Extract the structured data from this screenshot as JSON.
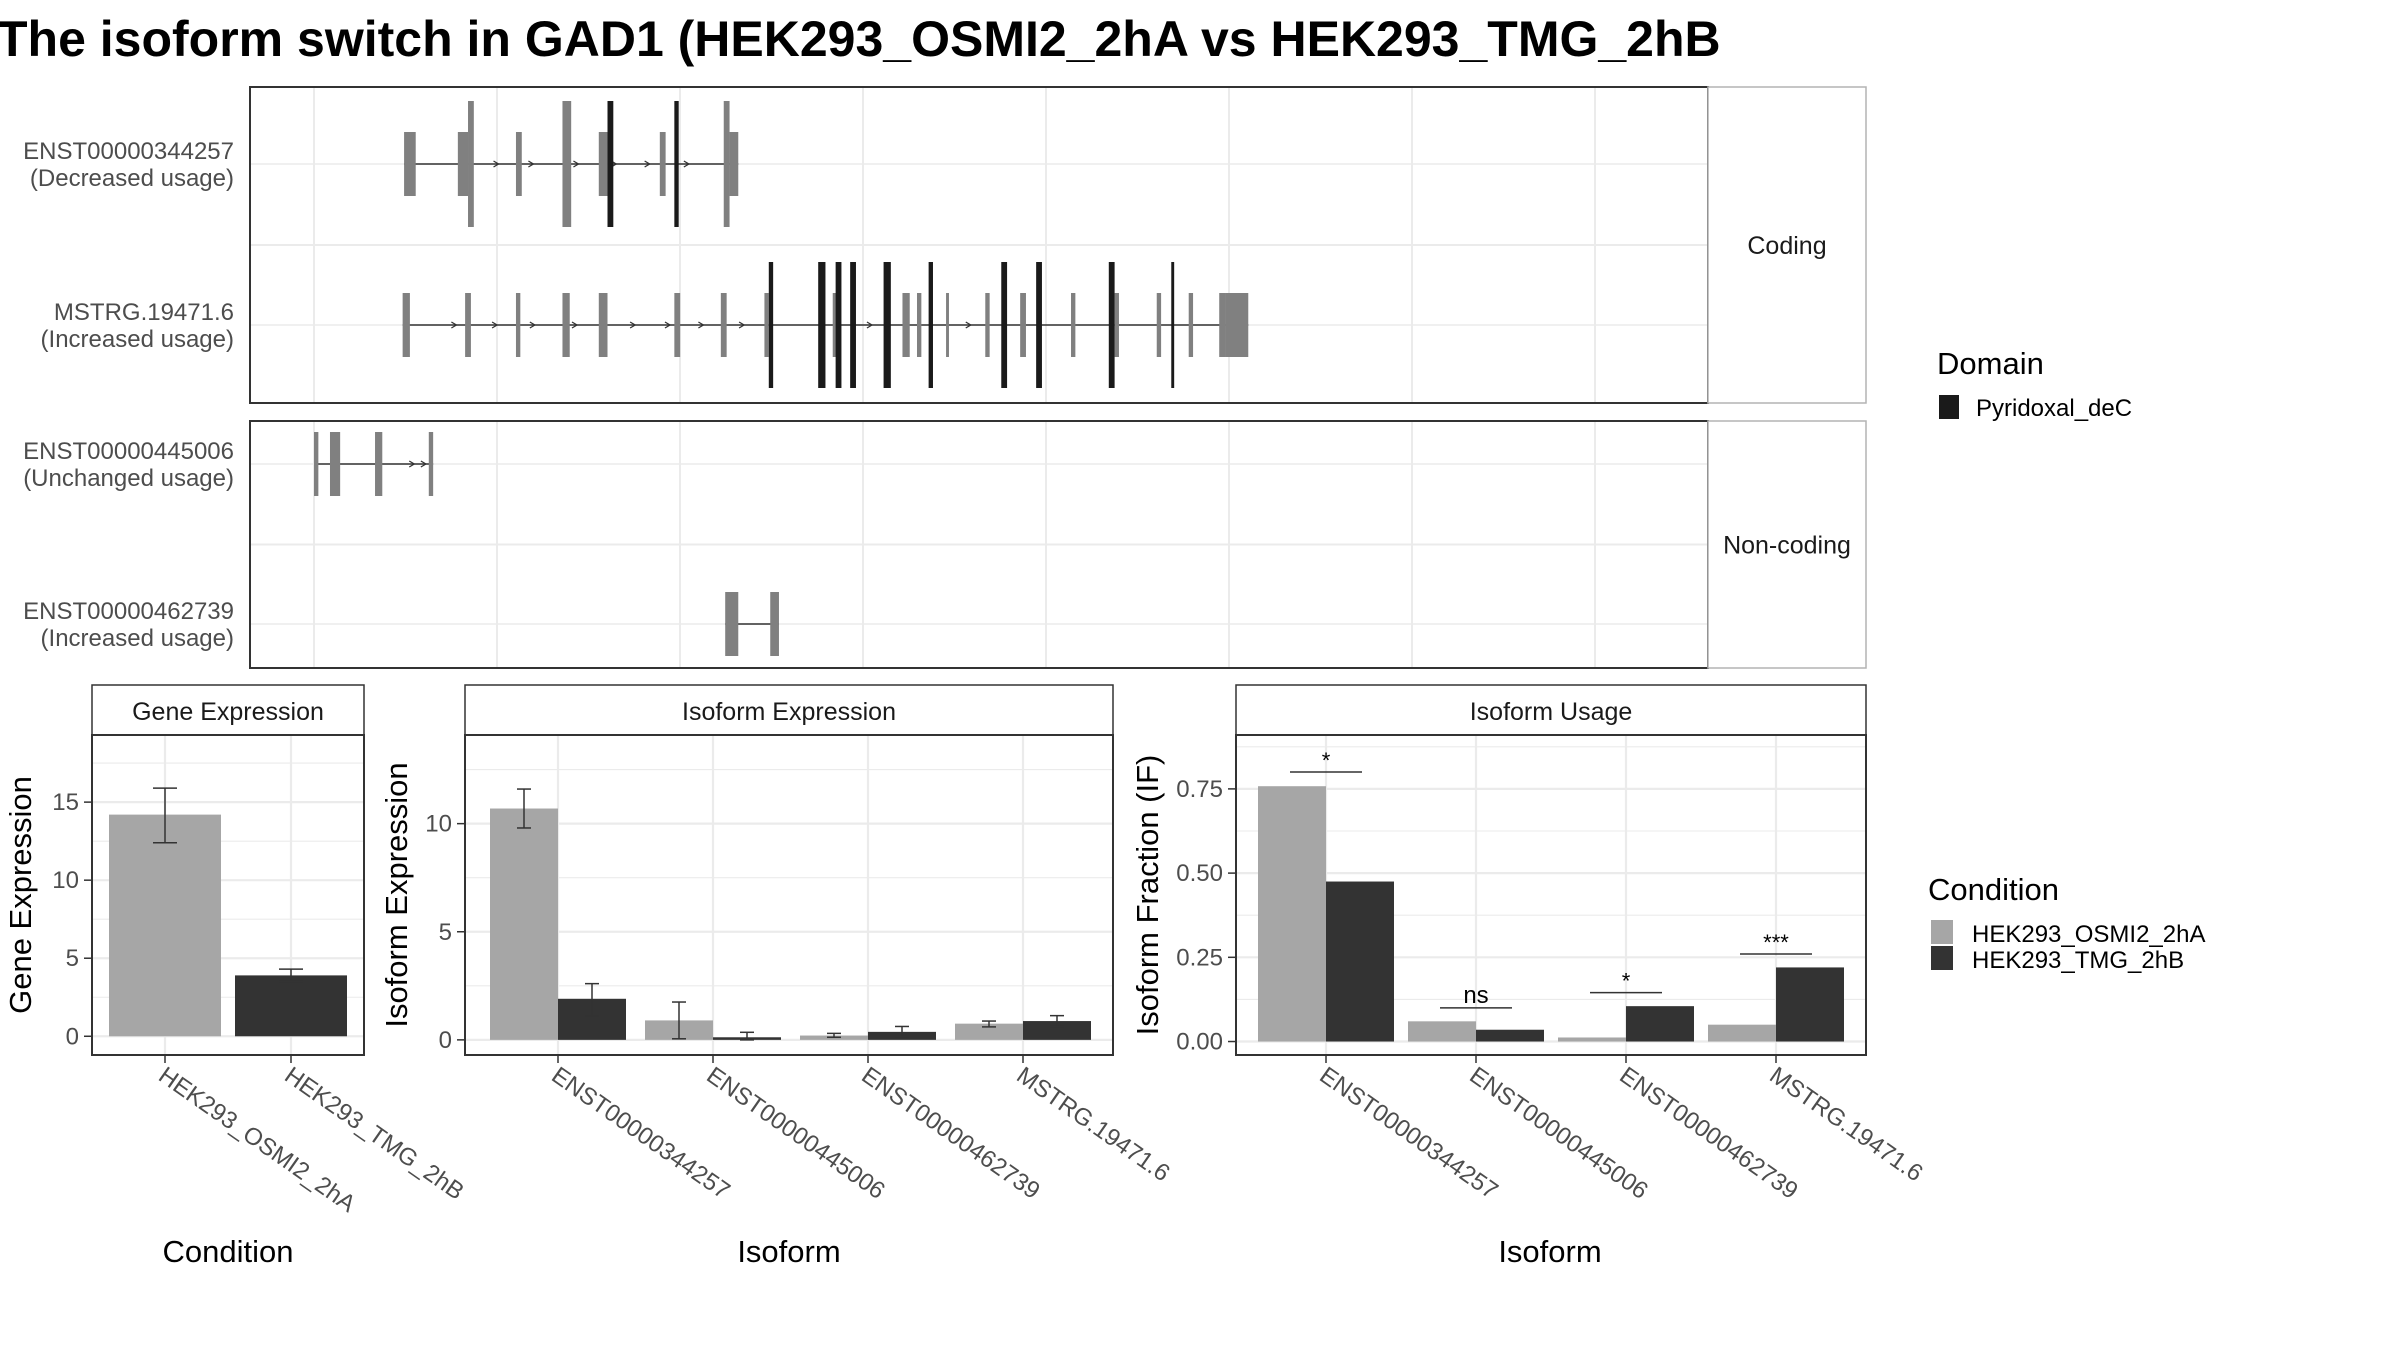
{
  "title": "The isoform switch in GAD1 (HEK293_OSMI2_2hA vs HEK293_TMG_2hB",
  "colors": {
    "cond1": "#a6a6a6",
    "cond2": "#333333",
    "exon": "#808080",
    "domain": "#1a1a1a",
    "grid": "#ebebeb",
    "strip": "#ffffff",
    "border": "#333333"
  },
  "structure": {
    "panels": [
      {
        "label": "Coding",
        "rows": [
          "ENST00000344257",
          "MSTRG.19471.6"
        ]
      },
      {
        "label": "Non-coding",
        "rows": [
          "ENST00000445006",
          "ENST00000462739"
        ]
      }
    ],
    "isoforms": [
      {
        "id": "ENST00000344257",
        "usage": "(Decreased usage)",
        "exons": [
          [
            62,
            70,
            "short"
          ],
          [
            99,
            106,
            "short"
          ],
          [
            106,
            110,
            "tall"
          ],
          [
            139,
            143,
            "short"
          ],
          [
            171,
            177,
            "tall"
          ],
          [
            196,
            202,
            "short"
          ],
          [
            238,
            242,
            "short"
          ],
          [
            282,
            286,
            "tall"
          ],
          [
            286,
            292,
            "short"
          ]
        ],
        "domains": [
          [
            202,
            206
          ],
          [
            248,
            251
          ]
        ],
        "arrows": [
          103,
          127,
          151,
          182,
          208,
          231,
          258
        ]
      },
      {
        "id": "MSTRG.19471.6",
        "usage": "(Increased usage)",
        "exons": [
          [
            61,
            66,
            "short"
          ],
          [
            104,
            108,
            "short"
          ],
          [
            139,
            142,
            "short"
          ],
          [
            171,
            176,
            "short"
          ],
          [
            196,
            202,
            "short"
          ],
          [
            248,
            252,
            "short"
          ],
          [
            280,
            284,
            "short"
          ],
          [
            310,
            313,
            "short"
          ],
          [
            357,
            362,
            "short"
          ],
          [
            405,
            410,
            "short"
          ],
          [
            415,
            418,
            "short"
          ],
          [
            435,
            437,
            "short"
          ],
          [
            462,
            465,
            "short"
          ],
          [
            486,
            490,
            "short"
          ],
          [
            521,
            524,
            "short"
          ],
          [
            551,
            554,
            "short"
          ],
          [
            580,
            583,
            "short"
          ],
          [
            602,
            605,
            "short"
          ],
          [
            623,
            627,
            "short"
          ],
          [
            627,
            643,
            "short"
          ]
        ],
        "domains": [
          [
            313,
            316
          ],
          [
            347,
            352
          ],
          [
            359,
            363
          ],
          [
            369,
            373
          ],
          [
            392,
            397
          ],
          [
            423,
            426
          ],
          [
            473,
            477
          ],
          [
            497,
            501
          ],
          [
            547,
            551
          ],
          [
            590,
            592
          ]
        ],
        "arrows": [
          98,
          126,
          152,
          181,
          221,
          245,
          268,
          296,
          384,
          452
        ]
      },
      {
        "id": "ENST00000445006",
        "usage": "(Unchanged usage)",
        "exons": [
          [
            0,
            3,
            "short"
          ],
          [
            11,
            18,
            "short"
          ],
          [
            42,
            47,
            "short"
          ],
          [
            79,
            82,
            "short"
          ]
        ],
        "domains": [],
        "arrows": [
          69,
          77
        ]
      },
      {
        "id": "ENST00000462739",
        "usage": "(Increased usage)",
        "exons": [
          [
            283,
            292,
            "short"
          ],
          [
            314,
            320,
            "short"
          ]
        ],
        "domains": [],
        "arrows": []
      }
    ],
    "legend": {
      "title": "Domain",
      "entries": [
        "Pyridoxal_deC"
      ]
    }
  },
  "chart_data": [
    {
      "type": "bar",
      "title": "Gene Expression",
      "xlabel": "Condition",
      "ylabel": "Gene Expression",
      "categories": [
        "HEK293_OSMI2_2hA",
        "HEK293_TMG_2hB"
      ],
      "values": [
        14.2,
        3.9
      ],
      "errors": [
        [
          12.4,
          15.9
        ],
        [
          3.5,
          4.3
        ]
      ],
      "ylim": [
        -1.2,
        19.3
      ],
      "yticks": [
        0,
        5,
        10,
        15
      ],
      "grid": true
    },
    {
      "type": "bar",
      "title": "Isoform Expression",
      "xlabel": "Isoform",
      "ylabel": "Isoform Expression",
      "categories": [
        "ENST00000344257",
        "ENST00000445006",
        "ENST00000462739",
        "MSTRG.19471.6"
      ],
      "series": [
        {
          "name": "HEK293_OSMI2_2hA",
          "values": [
            10.7,
            0.9,
            0.2,
            0.75
          ],
          "errors": [
            [
              9.8,
              11.6
            ],
            [
              0.05,
              1.75
            ],
            [
              0.12,
              0.3
            ],
            [
              0.6,
              0.87
            ]
          ]
        },
        {
          "name": "HEK293_TMG_2hB",
          "values": [
            1.9,
            0.12,
            0.37,
            0.87
          ],
          "errors": [
            [
              1.1,
              2.6
            ],
            [
              0.0,
              0.35
            ],
            [
              0.15,
              0.62
            ],
            [
              0.62,
              1.12
            ]
          ]
        }
      ],
      "ylim": [
        -0.7,
        14.1
      ],
      "yticks": [
        0,
        5,
        10
      ],
      "grid": true
    },
    {
      "type": "bar",
      "title": "Isoform Usage",
      "xlabel": "Isoform",
      "ylabel": "Isoform Fraction (IF)",
      "categories": [
        "ENST00000344257",
        "ENST00000445006",
        "ENST00000462739",
        "MSTRG.19471.6"
      ],
      "series": [
        {
          "name": "HEK293_OSMI2_2hA",
          "values": [
            0.758,
            0.06,
            0.012,
            0.05
          ]
        },
        {
          "name": "HEK293_TMG_2hB",
          "values": [
            0.475,
            0.035,
            0.105,
            0.22
          ]
        }
      ],
      "significance": [
        "*",
        "ns",
        "*",
        "***"
      ],
      "sig_heights": [
        0.8,
        0.1,
        0.145,
        0.26
      ],
      "ylim": [
        -0.04,
        0.91
      ],
      "yticks": [
        0.0,
        0.25,
        0.5,
        0.75
      ],
      "ytick_labels": [
        "0.00",
        "0.25",
        "0.50",
        "0.75"
      ],
      "grid": true
    }
  ],
  "legend_condition": {
    "title": "Condition",
    "entries": [
      "HEK293_OSMI2_2hA",
      "HEK293_TMG_2hB"
    ]
  }
}
